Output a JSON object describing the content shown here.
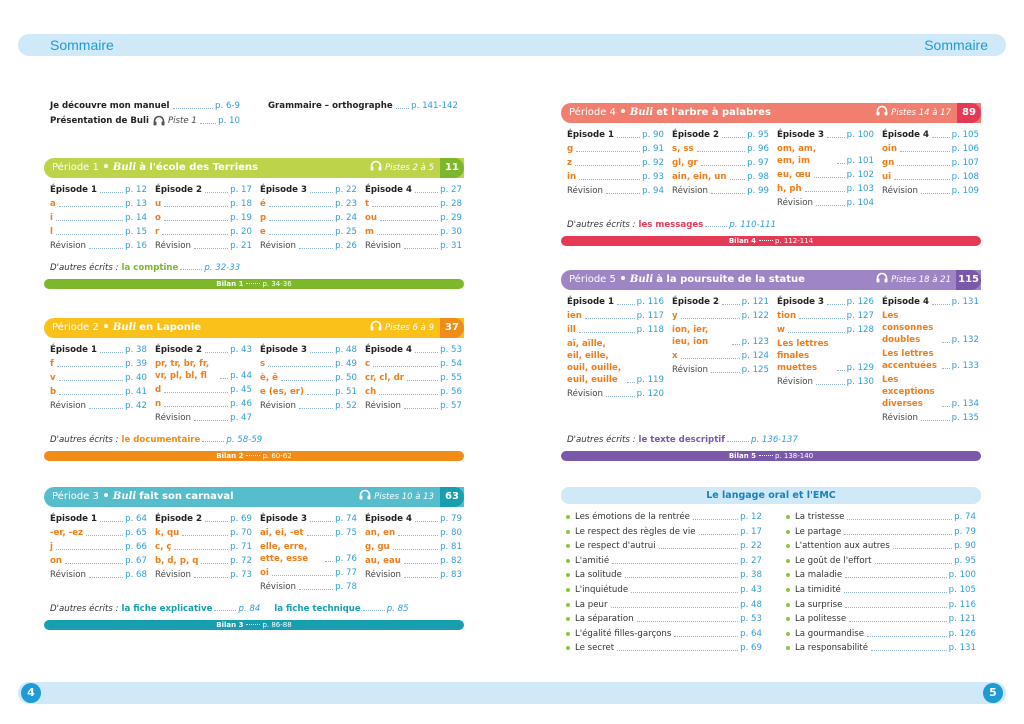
{
  "header": {
    "left": "Sommaire",
    "right": "Sommaire"
  },
  "footer": {
    "left_page": "4",
    "right_page": "5"
  },
  "intro": [
    {
      "label": "Je découvre mon manuel",
      "page": "p. 6-9"
    },
    {
      "label": "Grammaire – orthographe",
      "page": "p. 141-142"
    },
    {
      "label": "Présentation de Buli",
      "note": "Piste 1",
      "page": "p. 10"
    }
  ],
  "periods": [
    {
      "label": "Période 1",
      "hero": "Buli",
      "title": "à l'école des Terriens",
      "tracks": "Pistes 2 à 5",
      "number": "11",
      "color": {
        "header": "#bdd44a",
        "accent": "#7cb72c"
      },
      "episodes": [
        {
          "title": "Épisode 1",
          "page": "p. 12",
          "items": [
            {
              "label": "a",
              "page": "p. 13"
            },
            {
              "label": "i",
              "page": "p. 14"
            },
            {
              "label": "l",
              "page": "p. 15"
            }
          ],
          "revision": {
            "label": "Révision",
            "page": "p. 16"
          }
        },
        {
          "title": "Épisode 2",
          "page": "p. 17",
          "items": [
            {
              "label": "u",
              "page": "p. 18"
            },
            {
              "label": "o",
              "page": "p. 19"
            },
            {
              "label": "r",
              "page": "p. 20"
            }
          ],
          "revision": {
            "label": "Révision",
            "page": "p. 21"
          }
        },
        {
          "title": "Épisode 3",
          "page": "p. 22",
          "items": [
            {
              "label": "é",
              "page": "p. 23"
            },
            {
              "label": "p",
              "page": "p. 24"
            },
            {
              "label": "e",
              "page": "p. 25"
            }
          ],
          "revision": {
            "label": "Révision",
            "page": "p. 26"
          }
        },
        {
          "title": "Épisode 4",
          "page": "p. 27",
          "items": [
            {
              "label": "t",
              "page": "p. 28"
            },
            {
              "label": "ou",
              "page": "p. 29"
            },
            {
              "label": "m",
              "page": "p. 30"
            }
          ],
          "revision": {
            "label": "Révision",
            "page": "p. 31"
          }
        }
      ],
      "other": {
        "label": "D'autres écrits :",
        "items": [
          {
            "label": "la comptine",
            "page": "p. 32-33"
          }
        ]
      },
      "bilan": {
        "label": "Bilan 1",
        "page": "p. 34-36"
      }
    },
    {
      "label": "Période 2",
      "hero": "Buli",
      "title": "en Laponie",
      "tracks": "Pistes 6 à 9",
      "number": "37",
      "color": {
        "header": "#f9c11a",
        "accent": "#f28c18"
      },
      "episodes": [
        {
          "title": "Épisode 1",
          "page": "p. 38",
          "items": [
            {
              "label": "f",
              "page": "p. 39"
            },
            {
              "label": "v",
              "page": "p. 40"
            },
            {
              "label": "b",
              "page": "p. 41"
            }
          ],
          "revision": {
            "label": "Révision",
            "page": "p. 42"
          }
        },
        {
          "title": "Épisode 2",
          "page": "p. 43",
          "items": [
            {
              "label": "pr, tr, br, fr, vr, pl, bl, fl",
              "page": "p. 44"
            },
            {
              "label": "d",
              "page": "p. 45"
            },
            {
              "label": "n",
              "page": "p. 46"
            }
          ],
          "revision": {
            "label": "Révision",
            "page": "p. 47"
          }
        },
        {
          "title": "Épisode 3",
          "page": "p. 48",
          "items": [
            {
              "label": "s",
              "page": "p. 49"
            },
            {
              "label": "è, ê",
              "page": "p. 50"
            },
            {
              "label": "e (es, er)",
              "page": "p. 51"
            }
          ],
          "revision": {
            "label": "Révision",
            "page": "p. 52"
          }
        },
        {
          "title": "Épisode 4",
          "page": "p. 53",
          "items": [
            {
              "label": "c",
              "page": "p. 54"
            },
            {
              "label": "cr, cl, dr",
              "page": "p. 55"
            },
            {
              "label": "ch",
              "page": "p. 56"
            }
          ],
          "revision": {
            "label": "Révision",
            "page": "p. 57"
          }
        }
      ],
      "other": {
        "label": "D'autres écrits :",
        "items": [
          {
            "label": "le documentaire",
            "page": "p. 58-59"
          }
        ]
      },
      "bilan": {
        "label": "Bilan 2",
        "page": "p. 60-62"
      }
    },
    {
      "label": "Période 3",
      "hero": "Buli",
      "title": "fait son carnaval",
      "tracks": "Pistes 10 à 13",
      "number": "63",
      "color": {
        "header": "#55bdcb",
        "accent": "#179fb0"
      },
      "episodes": [
        {
          "title": "Épisode 1",
          "page": "p. 64",
          "items": [
            {
              "label": "-er, -ez",
              "page": "p. 65"
            },
            {
              "label": "j",
              "page": "p. 66"
            },
            {
              "label": "on",
              "page": "p. 67"
            }
          ],
          "revision": {
            "label": "Révision",
            "page": "p. 68"
          }
        },
        {
          "title": "Épisode 2",
          "page": "p. 69",
          "items": [
            {
              "label": "k, qu",
              "page": "p. 70"
            },
            {
              "label": "c, ç",
              "page": "p. 71"
            },
            {
              "label": "b, d, p, q",
              "page": "p. 72"
            }
          ],
          "revision": {
            "label": "Révision",
            "page": "p. 73"
          }
        },
        {
          "title": "Épisode 3",
          "page": "p. 74",
          "items": [
            {
              "label": "ai, ei, -et",
              "page": "p. 75"
            },
            {
              "label": "elle, erre, ette, esse",
              "page": "p. 76"
            },
            {
              "label": "oi",
              "page": "p. 77"
            }
          ],
          "revision": {
            "label": "Révision",
            "page": "p. 78"
          }
        },
        {
          "title": "Épisode 4",
          "page": "p. 79",
          "items": [
            {
              "label": "an, en",
              "page": "p. 80"
            },
            {
              "label": "g, gu",
              "page": "p. 81"
            },
            {
              "label": "au, eau",
              "page": "p. 82"
            }
          ],
          "revision": {
            "label": "Révision",
            "page": "p. 83"
          }
        }
      ],
      "other": {
        "label": "D'autres écrits :",
        "items": [
          {
            "label": "la fiche explicative",
            "page": "p. 84"
          },
          {
            "label": "la fiche technique",
            "page": "p. 85"
          }
        ]
      },
      "bilan": {
        "label": "Bilan 3",
        "page": "p. 86-88"
      }
    },
    {
      "label": "Période 4",
      "hero": "Buli",
      "title": "et l'arbre à palabres",
      "tracks": "Pistes 14 à 17",
      "number": "89",
      "color": {
        "header": "#f07f6f",
        "accent": "#e43a55"
      },
      "episodes": [
        {
          "title": "Épisode 1",
          "page": "p. 90",
          "items": [
            {
              "label": "g",
              "page": "p. 91"
            },
            {
              "label": "z",
              "page": "p. 92"
            },
            {
              "label": "in",
              "page": "p. 93"
            }
          ],
          "revision": {
            "label": "Révision",
            "page": "p. 94"
          }
        },
        {
          "title": "Épisode 2",
          "page": "p. 95",
          "items": [
            {
              "label": "s, ss",
              "page": "p. 96"
            },
            {
              "label": "gl, gr",
              "page": "p. 97"
            },
            {
              "label": "ain, ein, un",
              "page": "p. 98"
            }
          ],
          "revision": {
            "label": "Révision",
            "page": "p. 99"
          }
        },
        {
          "title": "Épisode 3",
          "page": "p. 100",
          "items": [
            {
              "label": "om, am, em, im",
              "page": "p. 101"
            },
            {
              "label": "eu, œu",
              "page": "p. 102"
            },
            {
              "label": "h, ph",
              "page": "p. 103"
            }
          ],
          "revision": {
            "label": "Révision",
            "page": "p. 104"
          }
        },
        {
          "title": "Épisode 4",
          "page": "p. 105",
          "items": [
            {
              "label": "oin",
              "page": "p. 106"
            },
            {
              "label": "gn",
              "page": "p. 107"
            },
            {
              "label": "ui",
              "page": "p. 108"
            }
          ],
          "revision": {
            "label": "Révision",
            "page": "p. 109"
          }
        }
      ],
      "other": {
        "label": "D'autres écrits :",
        "items": [
          {
            "label": "les messages",
            "page": "p. 110-111"
          }
        ]
      },
      "bilan": {
        "label": "Bilan 4",
        "page": "p. 112-114"
      }
    },
    {
      "label": "Période 5",
      "hero": "Buli",
      "title": "à la poursuite de la statue",
      "tracks": "Pistes 18 à 21",
      "number": "115",
      "color": {
        "header": "#9d85c6",
        "accent": "#7a58aa"
      },
      "episodes": [
        {
          "title": "Épisode 1",
          "page": "p. 116",
          "items": [
            {
              "label": "ien",
              "page": "p. 117"
            },
            {
              "label": "ill",
              "page": "p. 118"
            },
            {
              "label": "aï, aïlle, eil, eille, ouil, ouille, euil, euille",
              "page": "p. 119"
            }
          ],
          "revision": {
            "label": "Révision",
            "page": "p. 120"
          }
        },
        {
          "title": "Épisode 2",
          "page": "p. 121",
          "items": [
            {
              "label": "y",
              "page": "p. 122"
            },
            {
              "label": "ion, ier, ieu, ion",
              "page": "p. 123"
            },
            {
              "label": "x",
              "page": "p. 124"
            }
          ],
          "revision": {
            "label": "Révision",
            "page": "p. 125"
          }
        },
        {
          "title": "Épisode 3",
          "page": "p. 126",
          "items": [
            {
              "label": "tion",
              "page": "p. 127"
            },
            {
              "label": "w",
              "page": "p. 128"
            },
            {
              "label": "Les lettres finales muettes",
              "page": "p. 129"
            }
          ],
          "revision": {
            "label": "Révision",
            "page": "p. 130"
          }
        },
        {
          "title": "Épisode 4",
          "page": "p. 131",
          "items": [
            {
              "label": "Les consonnes doubles",
              "page": "p. 132"
            },
            {
              "label": "Les lettres accentuées",
              "page": "p. 133"
            },
            {
              "label": "Les exceptions diverses",
              "page": "p. 134"
            }
          ],
          "revision": {
            "label": "Révision",
            "page": "p. 135"
          }
        }
      ],
      "other": {
        "label": "D'autres écrits :",
        "items": [
          {
            "label": "le texte descriptif",
            "page": "p. 136-137"
          }
        ]
      },
      "bilan": {
        "label": "Bilan 5",
        "page": "p. 138-140"
      }
    }
  ],
  "oral": {
    "title": "Le langage oral et l'EMC",
    "columns": [
      [
        {
          "label": "Les émotions de la rentrée",
          "page": "p. 12"
        },
        {
          "label": "Le respect des règles de vie",
          "page": "p. 17"
        },
        {
          "label": "Le respect d'autrui",
          "page": "p. 22"
        },
        {
          "label": "L'amitié",
          "page": "p. 27"
        },
        {
          "label": "La solitude",
          "page": "p. 38"
        },
        {
          "label": "L'inquiétude",
          "page": "p. 43"
        },
        {
          "label": "La peur",
          "page": "p. 48"
        },
        {
          "label": "La séparation",
          "page": "p. 53"
        },
        {
          "label": "L'égalité filles-garçons",
          "page": "p. 64"
        },
        {
          "label": "Le secret",
          "page": "p. 69"
        }
      ],
      [
        {
          "label": "La tristesse",
          "page": "p. 74"
        },
        {
          "label": "Le partage",
          "page": "p. 79"
        },
        {
          "label": "L'attention aux autres",
          "page": "p. 90"
        },
        {
          "label": "Le goût de l'effort",
          "page": "p. 95"
        },
        {
          "label": "La maladie",
          "page": "p. 100"
        },
        {
          "label": "La timidité",
          "page": "p. 105"
        },
        {
          "label": "La surprise",
          "page": "p. 116"
        },
        {
          "label": "La politesse",
          "page": "p. 121"
        },
        {
          "label": "La gourmandise",
          "page": "p. 126"
        },
        {
          "label": "La responsabilité",
          "page": "p. 131"
        }
      ]
    ]
  }
}
